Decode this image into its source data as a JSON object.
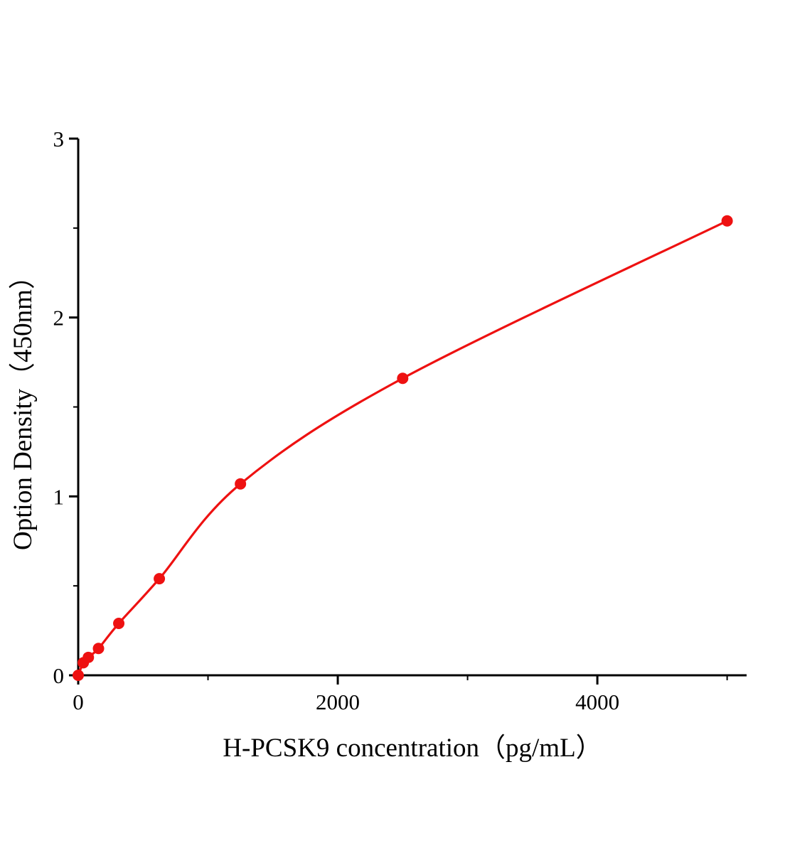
{
  "figure": {
    "background": "#ffffff",
    "description": "ELISA standard curve plot"
  },
  "chart_data": {
    "type": "scatter",
    "subtype": "standard-curve-with-fit",
    "title": "",
    "xlabel": "H-PCSK9 concentration（pg/mL）",
    "ylabel": "Option Density（450nm）",
    "x": [
      0,
      39.06,
      78.13,
      156.25,
      312.5,
      625,
      1250,
      2500,
      5000
    ],
    "y": [
      0.0,
      0.07,
      0.1,
      0.15,
      0.29,
      0.54,
      1.07,
      1.66,
      2.54
    ],
    "xlim": [
      0,
      5150
    ],
    "ylim": [
      0,
      3
    ],
    "xticks": [
      0,
      2000,
      4000
    ],
    "xminorticks": [
      1000,
      3000,
      5000
    ],
    "yticks": [
      0,
      1,
      2,
      3
    ],
    "yminorticks": [
      0.5,
      1.5,
      2.5
    ],
    "grid": false,
    "legend": false,
    "curve": "smooth",
    "marker": "circle",
    "line_color": "#ee1111",
    "marker_color": "#ee1111",
    "axis_color": "#000000"
  }
}
